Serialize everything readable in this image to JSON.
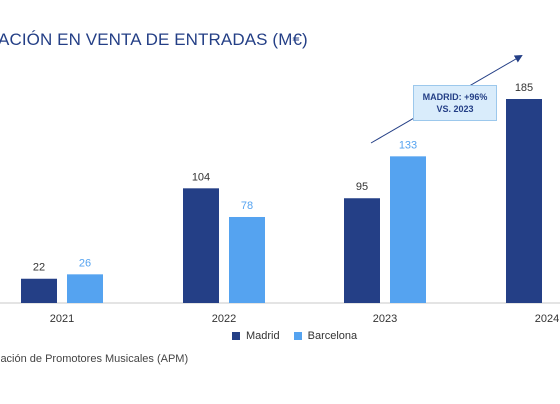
{
  "title": "ACIÓN EN VENTA DE ENTRADAS (M€)",
  "source": "iación de Promotores Musicales (APM)",
  "callout": {
    "line1": "MADRID: +96%",
    "line2": "VS. 2023"
  },
  "colors": {
    "madrid": "#243f86",
    "barcelona": "#55a3f0",
    "title": "#243f86",
    "callout_bg": "#d9ecfb"
  },
  "chart_data": {
    "type": "bar",
    "title": "ACIÓN EN VENTA DE ENTRADAS (M€)",
    "categories": [
      "2021",
      "2022",
      "2023",
      "2024"
    ],
    "series": [
      {
        "name": "Madrid",
        "values": [
          22,
          104,
          95,
          185
        ]
      },
      {
        "name": "Barcelona",
        "values": [
          26,
          78,
          133,
          null
        ]
      }
    ],
    "ylim": [
      0,
      185
    ],
    "grid": false,
    "legend": "bottom-center",
    "annotations": [
      "MADRID: +96% VS. 2023"
    ]
  }
}
